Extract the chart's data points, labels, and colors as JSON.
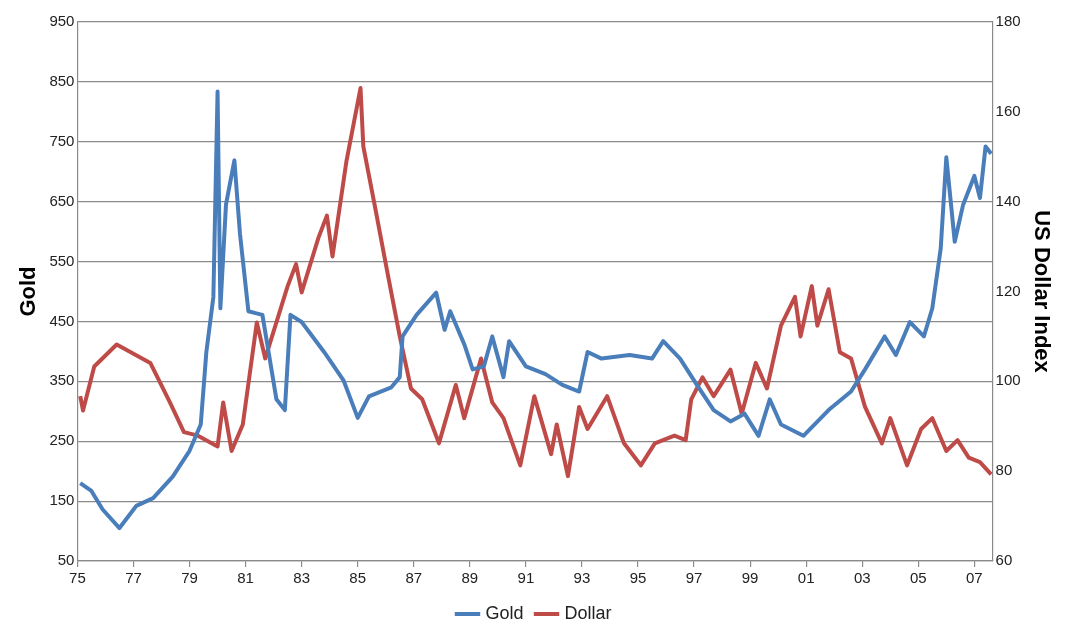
{
  "chart_data": {
    "type": "line",
    "ylabel": "Gold",
    "y2label": "US Dollar Index",
    "xlim": [
      1975,
      2007.65
    ],
    "xticks": [
      {
        "value": 1975,
        "label": "75"
      },
      {
        "value": 1977,
        "label": "77"
      },
      {
        "value": 1979,
        "label": "79"
      },
      {
        "value": 1981,
        "label": "81"
      },
      {
        "value": 1983,
        "label": "83"
      },
      {
        "value": 1985,
        "label": "85"
      },
      {
        "value": 1987,
        "label": "87"
      },
      {
        "value": 1989,
        "label": "89"
      },
      {
        "value": 1991,
        "label": "91"
      },
      {
        "value": 1993,
        "label": "93"
      },
      {
        "value": 1995,
        "label": "95"
      },
      {
        "value": 1997,
        "label": "97"
      },
      {
        "value": 1999,
        "label": "99"
      },
      {
        "value": 2001,
        "label": "01"
      },
      {
        "value": 2003,
        "label": "03"
      },
      {
        "value": 2005,
        "label": "05"
      },
      {
        "value": 2007,
        "label": "07"
      }
    ],
    "ylim": [
      50,
      950
    ],
    "yticks": [
      50,
      150,
      250,
      350,
      450,
      550,
      650,
      750,
      850,
      950
    ],
    "y2lim": [
      60,
      180
    ],
    "y2ticks": [
      60,
      80,
      100,
      120,
      140,
      160,
      180
    ],
    "grid": "y",
    "legend": "bottom",
    "series": [
      {
        "name": "Gold",
        "color": "#4a7ebb",
        "x": [
          1975.1,
          1975.5,
          1975.9,
          1976.5,
          1977.1,
          1977.7,
          1978.4,
          1979.0,
          1979.4,
          1979.6,
          1979.85,
          1980.0,
          1980.1,
          1980.3,
          1980.6,
          1980.8,
          1981.1,
          1981.6,
          1982.1,
          1982.4,
          1982.6,
          1983.0,
          1983.8,
          1984.5,
          1985.0,
          1985.4,
          1986.2,
          1986.5,
          1986.6,
          1987.1,
          1987.8,
          1988.1,
          1988.3,
          1988.8,
          1989.1,
          1989.5,
          1989.8,
          1990.2,
          1990.4,
          1991.0,
          1991.7,
          1992.3,
          1992.9,
          1993.2,
          1993.7,
          1994.7,
          1995.5,
          1995.9,
          1996.5,
          1997.1,
          1997.7,
          1998.3,
          1998.8,
          1999.3,
          1999.7,
          2000.1,
          2000.9,
          2001.8,
          2002.6,
          2003.1,
          2003.8,
          2004.2,
          2004.7,
          2005.2,
          2005.5,
          2005.8,
          2006.0,
          2006.3,
          2006.6,
          2007.0,
          2007.2,
          2007.4,
          2007.6
        ],
        "values": [
          180,
          167,
          136,
          105,
          142,
          155,
          191,
          234,
          278,
          399,
          491,
          834,
          472,
          645,
          719,
          596,
          467,
          461,
          320,
          302,
          461,
          449,
          399,
          351,
          289,
          325,
          340,
          357,
          425,
          461,
          498,
          436,
          467,
          412,
          370,
          375,
          425,
          357,
          417,
          375,
          362,
          344,
          333,
          399,
          388,
          394,
          388,
          417,
          388,
          344,
          302,
          283,
          296,
          259,
          320,
          278,
          259,
          302,
          333,
          370,
          425,
          394,
          449,
          425,
          472,
          572,
          724,
          583,
          645,
          693,
          656,
          742,
          730
        ]
      },
      {
        "name": "Dollar",
        "color": "#be4b48",
        "axis": "y2",
        "x": [
          1975.1,
          1975.2,
          1975.6,
          1976.4,
          1977.6,
          1978.3,
          1978.8,
          1979.3,
          1980.0,
          1980.2,
          1980.5,
          1980.9,
          1981.4,
          1981.7,
          1982.5,
          1982.8,
          1983.0,
          1983.6,
          1983.9,
          1984.1,
          1984.6,
          1985.1,
          1985.2,
          1985.6,
          1986.1,
          1986.5,
          1986.9,
          1987.3,
          1987.9,
          1988.5,
          1988.8,
          1989.4,
          1989.8,
          1990.2,
          1990.8,
          1991.3,
          1991.9,
          1992.1,
          1992.5,
          1992.9,
          1993.2,
          1993.9,
          1994.5,
          1995.1,
          1995.6,
          1996.3,
          1996.7,
          1996.9,
          1997.3,
          1997.7,
          1998.3,
          1998.7,
          1999.2,
          1999.6,
          2000.1,
          2000.6,
          2000.8,
          2001.2,
          2001.4,
          2001.8,
          2002.2,
          2002.6,
          2003.1,
          2003.7,
          2004.0,
          2004.6,
          2005.1,
          2005.5,
          2006.0,
          2006.4,
          2006.8,
          2007.2,
          2007.6
        ],
        "values": [
          96.7,
          93.5,
          103.3,
          108.2,
          104.1,
          95.3,
          88.7,
          87.9,
          85.5,
          95.3,
          84.5,
          90.4,
          113.1,
          105.1,
          121.2,
          126.1,
          119.8,
          132.0,
          136.9,
          127.8,
          149.1,
          165.3,
          152.3,
          139.4,
          122.9,
          110.0,
          98.4,
          96.0,
          86.2,
          99.2,
          91.8,
          105.1,
          95.3,
          91.8,
          81.3,
          96.7,
          83.8,
          90.4,
          78.9,
          94.3,
          89.4,
          96.7,
          86.2,
          81.3,
          86.2,
          87.9,
          86.9,
          96.0,
          100.9,
          96.7,
          102.6,
          92.8,
          104.1,
          98.4,
          112.4,
          118.8,
          110.0,
          121.2,
          112.4,
          120.5,
          106.5,
          105.1,
          94.3,
          86.2,
          91.8,
          81.3,
          89.4,
          91.8,
          84.5,
          86.9,
          83.0,
          82.0,
          79.3
        ]
      }
    ]
  }
}
